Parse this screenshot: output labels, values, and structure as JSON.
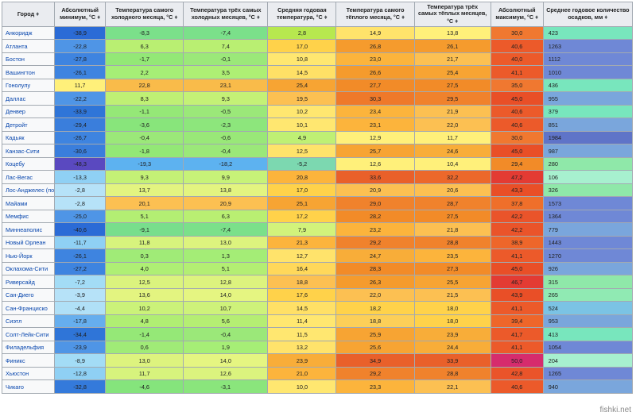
{
  "watermark": "fishki.net",
  "table": {
    "sort_glyph": "♦",
    "columns": [
      {
        "label": "Город"
      },
      {
        "label": "Абсолютный минимум, °C"
      },
      {
        "label": "Температура самого холодного месяца, °C"
      },
      {
        "label": "Температура трёх самых холодных месяцев, °C"
      },
      {
        "label": "Средняя годовая температура, °C"
      },
      {
        "label": "Температура самого тёплого месяца, °C"
      },
      {
        "label": "Температура трёх самых тёплых месяцев, °C"
      },
      {
        "label": "Абсолютный максимум, °C"
      },
      {
        "label": "Среднее годовое количество осадков, мм"
      }
    ],
    "rows": [
      {
        "city": "Анкоридж",
        "v": [
          "-38,9",
          "-8,3",
          "-7,4",
          "2,8",
          "14,9",
          "13,8",
          "30,0",
          "423"
        ],
        "c": [
          "#2b6bd6",
          "#7be08a",
          "#7be08a",
          "#b7e84f",
          "#ffe36b",
          "#fff07a",
          "#f07830",
          "#78e6bd"
        ]
      },
      {
        "city": "Атланта",
        "v": [
          "-22,8",
          "6,3",
          "7,4",
          "17,0",
          "26,8",
          "26,1",
          "40,6",
          "1263"
        ],
        "c": [
          "#4f95e6",
          "#b9ef72",
          "#b9ef72",
          "#ffd24a",
          "#f59b2d",
          "#f59b2d",
          "#ec5a2a",
          "#6f88d6"
        ]
      },
      {
        "city": "Бостон",
        "v": [
          "-27,8",
          "-1,7",
          "-0,1",
          "10,8",
          "23,0",
          "21,7",
          "40,0",
          "1112"
        ],
        "c": [
          "#3e84e0",
          "#93e876",
          "#9be879",
          "#ffe770",
          "#fcb43c",
          "#fcc052",
          "#ec5a2a",
          "#6f88d6"
        ]
      },
      {
        "city": "Вашингтон",
        "v": [
          "-26,1",
          "2,2",
          "3,5",
          "14,5",
          "26,6",
          "25,4",
          "41,1",
          "1010"
        ],
        "c": [
          "#3e84e0",
          "#a6ee76",
          "#aeef74",
          "#ffe066",
          "#f59b2d",
          "#f7a433",
          "#ec5a2a",
          "#6f88d6"
        ]
      },
      {
        "city": "Гонолулу",
        "v": [
          "11,7",
          "22,8",
          "23,1",
          "25,4",
          "27,7",
          "27,5",
          "35,0",
          "436"
        ],
        "c": [
          "#fff07a",
          "#f9bb4a",
          "#f9bb4a",
          "#f7a433",
          "#f28b28",
          "#f28b28",
          "#f07830",
          "#78e6bd"
        ]
      },
      {
        "city": "Даллас",
        "v": [
          "-22,2",
          "8,3",
          "9,3",
          "19,5",
          "30,3",
          "29,5",
          "45,0",
          "955"
        ],
        "c": [
          "#4f95e6",
          "#bff074",
          "#c4f176",
          "#fcc052",
          "#ef792a",
          "#f0822c",
          "#e94f27",
          "#7aa6dc"
        ]
      },
      {
        "city": "Денвер",
        "v": [
          "-33,9",
          "-1,1",
          "-0,5",
          "10,2",
          "23,4",
          "21,9",
          "40,6",
          "379"
        ],
        "c": [
          "#2f75d8",
          "#95e877",
          "#9be879",
          "#ffe770",
          "#fcb43c",
          "#fcc052",
          "#ec5a2a",
          "#78e6bd"
        ]
      },
      {
        "city": "Детройт",
        "v": [
          "-29,4",
          "-3,6",
          "-2,3",
          "10,1",
          "23,1",
          "22,0",
          "40,6",
          "851"
        ],
        "c": [
          "#3a7edc",
          "#88e57b",
          "#8de67c",
          "#ffe770",
          "#fcb43c",
          "#fcc052",
          "#ec5a2a",
          "#7aa6dc"
        ]
      },
      {
        "city": "Кадьяк",
        "v": [
          "-26,7",
          "-0,4",
          "-0,6",
          "4,9",
          "12,9",
          "11,7",
          "30,0",
          "1984"
        ],
        "c": [
          "#3e84e0",
          "#9be879",
          "#99e878",
          "#bff074",
          "#fff07a",
          "#fff07a",
          "#f07830",
          "#5f74c8"
        ]
      },
      {
        "city": "Канзас-Сити",
        "v": [
          "-30,6",
          "-1,8",
          "-0,4",
          "12,5",
          "25,7",
          "24,6",
          "45,0",
          "987"
        ],
        "c": [
          "#3a7edc",
          "#93e876",
          "#9be879",
          "#ffe36b",
          "#f7a433",
          "#f8ad39",
          "#e94f27",
          "#7aa6dc"
        ]
      },
      {
        "city": "Коцебу",
        "v": [
          "-48,3",
          "-19,3",
          "-18,2",
          "-5,2",
          "12,6",
          "10,4",
          "29,4",
          "280"
        ],
        "c": [
          "#5a49c0",
          "#5db2f0",
          "#5db2f0",
          "#7cd8b0",
          "#fff07a",
          "#fff07a",
          "#f28b28",
          "#8fe8a9"
        ]
      },
      {
        "city": "Лас-Вегас",
        "v": [
          "-13,3",
          "9,3",
          "9,9",
          "20,8",
          "33,6",
          "32,2",
          "47,2",
          "106"
        ],
        "c": [
          "#8fd0f4",
          "#c4f176",
          "#c7f278",
          "#fcb43c",
          "#e9602a",
          "#ec682b",
          "#e33b33",
          "#a7f0cf"
        ]
      },
      {
        "city": "Лос-Анджелес (побережье)",
        "v": [
          "-2,8",
          "13,7",
          "13,8",
          "17,0",
          "20,9",
          "20,6",
          "43,3",
          "326"
        ],
        "c": [
          "#b6e2f8",
          "#e3f480",
          "#e3f480",
          "#ffd24a",
          "#fcc052",
          "#fcc052",
          "#e94f27",
          "#8fe8a9"
        ]
      },
      {
        "city": "Майами",
        "v": [
          "-2,8",
          "20,1",
          "20,9",
          "25,1",
          "29,0",
          "28,7",
          "37,8",
          "1573"
        ],
        "c": [
          "#b6e2f8",
          "#fcc052",
          "#fcc052",
          "#f7a433",
          "#f0822c",
          "#f0822c",
          "#ef6f2a",
          "#6f88d6"
        ]
      },
      {
        "city": "Мемфис",
        "v": [
          "-25,0",
          "5,1",
          "6,3",
          "17,2",
          "28,2",
          "27,5",
          "42,2",
          "1364"
        ],
        "c": [
          "#4f95e6",
          "#b3ee73",
          "#b9ef72",
          "#ffd24a",
          "#f28b28",
          "#f28b28",
          "#ea542a",
          "#6f88d6"
        ]
      },
      {
        "city": "Миннеаполис",
        "v": [
          "-40,6",
          "-9,1",
          "-7,4",
          "7,9",
          "23,2",
          "21,8",
          "42,2",
          "779"
        ],
        "c": [
          "#2b6bd6",
          "#78de8c",
          "#7be08a",
          "#d2f37b",
          "#fcb43c",
          "#fcc052",
          "#ea542a",
          "#7aa6dc"
        ]
      },
      {
        "city": "Новый Орлеан",
        "v": [
          "-11,7",
          "11,8",
          "13,0",
          "21,3",
          "29,2",
          "28,8",
          "38,9",
          "1443"
        ],
        "c": [
          "#8fd0f4",
          "#d7f37d",
          "#ddf37e",
          "#fcb43c",
          "#f0822c",
          "#f0822c",
          "#ee662a",
          "#6f88d6"
        ]
      },
      {
        "city": "Нью-Йорк",
        "v": [
          "-26,1",
          "0,3",
          "1,3",
          "12,7",
          "24,7",
          "23,5",
          "41,1",
          "1270"
        ],
        "c": [
          "#3e84e0",
          "#a0eb77",
          "#a4ed76",
          "#ffe36b",
          "#f8ad39",
          "#fcb43c",
          "#ec5a2a",
          "#6f88d6"
        ]
      },
      {
        "city": "Оклахома-Сити",
        "v": [
          "-27,2",
          "4,0",
          "5,1",
          "16,4",
          "28,3",
          "27,3",
          "45,0",
          "926"
        ],
        "c": [
          "#3e84e0",
          "#aeef74",
          "#b3ee73",
          "#ffd85a",
          "#f28b28",
          "#f28b28",
          "#e94f27",
          "#7aa6dc"
        ]
      },
      {
        "city": "Риверсайд",
        "v": [
          "-7,2",
          "12,5",
          "12,8",
          "18,8",
          "26,3",
          "25,5",
          "46,7",
          "315"
        ],
        "c": [
          "#a3dcf6",
          "#dbf37e",
          "#ddf37e",
          "#fcc052",
          "#f59b2d",
          "#f7a433",
          "#e33b33",
          "#8fe8a9"
        ]
      },
      {
        "city": "Сан-Диего",
        "v": [
          "-3,9",
          "13,6",
          "14,0",
          "17,6",
          "22,0",
          "21,5",
          "43,9",
          "265"
        ],
        "c": [
          "#b6e2f8",
          "#e3f480",
          "#e5f581",
          "#ffd24a",
          "#fcc052",
          "#fcc052",
          "#e94f27",
          "#90eab3"
        ]
      },
      {
        "city": "Сан-Франциско",
        "v": [
          "-4,4",
          "10,2",
          "10,7",
          "14,5",
          "18,2",
          "18,0",
          "41,1",
          "524"
        ],
        "c": [
          "#b0e0f7",
          "#cbf279",
          "#cef27a",
          "#ffe066",
          "#ffd24a",
          "#ffd24a",
          "#ec5a2a",
          "#7bc3e4"
        ]
      },
      {
        "city": "Сиэтл",
        "v": [
          "-17,8",
          "4,8",
          "5,6",
          "11,4",
          "18,8",
          "18,0",
          "39,4",
          "953"
        ],
        "c": [
          "#66aeee",
          "#b0ee73",
          "#b5ee73",
          "#ffe770",
          "#fccf58",
          "#ffd24a",
          "#ee662a",
          "#7aa6dc"
        ]
      },
      {
        "city": "Солт-Лейк-Сити",
        "v": [
          "-34,4",
          "-1,4",
          "-0,4",
          "11,5",
          "25,9",
          "23,9",
          "41,7",
          "413"
        ],
        "c": [
          "#2f75d8",
          "#95e877",
          "#9be879",
          "#ffe770",
          "#f7a433",
          "#f8ad39",
          "#ec5a2a",
          "#78e6bd"
        ]
      },
      {
        "city": "Филадельфия",
        "v": [
          "-23,9",
          "0,6",
          "1,9",
          "13,2",
          "25,6",
          "24,4",
          "41,1",
          "1054"
        ],
        "c": [
          "#4f95e6",
          "#a0eb77",
          "#a6ee76",
          "#ffe36b",
          "#f7a433",
          "#f8ad39",
          "#ec5a2a",
          "#6f88d6"
        ]
      },
      {
        "city": "Финикс",
        "v": [
          "-8,9",
          "13,0",
          "14,0",
          "23,9",
          "34,9",
          "33,9",
          "50,0",
          "204"
        ],
        "c": [
          "#a3dcf6",
          "#ddf37e",
          "#e5f581",
          "#f8ad39",
          "#e9602a",
          "#e9602a",
          "#d62c6d",
          "#a7f0cf"
        ]
      },
      {
        "city": "Хьюстон",
        "v": [
          "-12,8",
          "11,7",
          "12,6",
          "21,0",
          "29,2",
          "28,8",
          "42,8",
          "1265"
        ],
        "c": [
          "#8fd0f4",
          "#d7f37d",
          "#dbf37e",
          "#fcb43c",
          "#f0822c",
          "#f0822c",
          "#ea542a",
          "#6f88d6"
        ]
      },
      {
        "city": "Чикаго",
        "v": [
          "-32,8",
          "-4,6",
          "-3,1",
          "10,0",
          "23,3",
          "22,1",
          "40,6",
          "940"
        ],
        "c": [
          "#347adb",
          "#85e47c",
          "#8ae57c",
          "#ffe770",
          "#fcb43c",
          "#fcc052",
          "#ec5a2a",
          "#7aa6dc"
        ]
      }
    ]
  }
}
